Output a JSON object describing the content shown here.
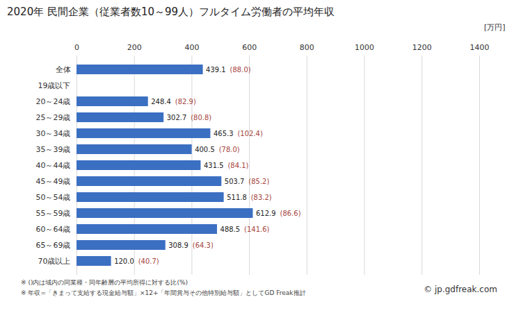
{
  "chart_data": {
    "type": "bar",
    "orientation": "horizontal",
    "title": "2020年 民間企業（従業者数10～99人）フルタイム労働者の平均年収",
    "x_label": "[万円]",
    "categories": [
      "全体",
      "19歳以下",
      "20～24歳",
      "25～29歳",
      "30～34歳",
      "35～39歳",
      "40～44歳",
      "45～49歳",
      "50～54歳",
      "55～59歳",
      "60～64歳",
      "65～69歳",
      "70歳以上"
    ],
    "values": [
      439.1,
      null,
      248.4,
      302.7,
      465.3,
      400.5,
      431.5,
      503.7,
      511.8,
      612.9,
      488.5,
      308.9,
      120.0
    ],
    "value_labels": [
      "439.1",
      null,
      "248.4",
      "302.7",
      "465.3",
      "400.5",
      "431.5",
      "503.7",
      "511.8",
      "612.9",
      "488.5",
      "308.9",
      "120.0"
    ],
    "ratio_labels": [
      "(88.0)",
      null,
      "(82.9)",
      "(80.8)",
      "(102.4)",
      "(78.0)",
      "(84.1)",
      "(85.2)",
      "(83.2)",
      "(86.6)",
      "(141.6)",
      "(64.3)",
      "(40.7)"
    ],
    "color": "#3b6fc2",
    "ratio_color": "#a5443d",
    "xlim": [
      0,
      1400
    ],
    "xticks": [
      0,
      200,
      400,
      600,
      800,
      1000,
      1200,
      1400
    ],
    "grid": true,
    "data_labels": true,
    "notes": [
      "※ ()内は域内の同業種・同年齢層の平均所得に対する比(%)",
      "※ 年収=「きまって支給する現金給与額」×12+「年間賞与その他特別給与額」としてGD Freak推計"
    ],
    "source": "© jp.gdfreak.com"
  }
}
